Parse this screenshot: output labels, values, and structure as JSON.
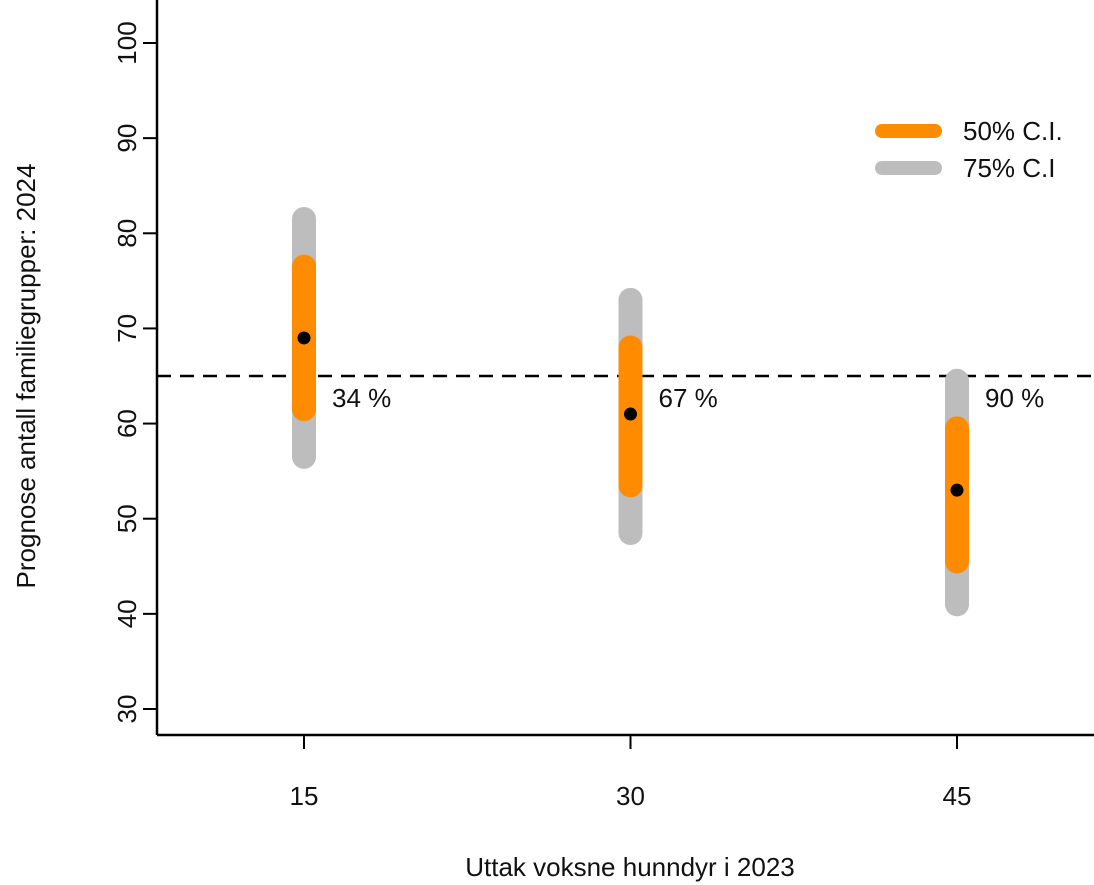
{
  "chart_data": {
    "type": "interval",
    "xlabel": "Uttak voksne hunndyr i 2023",
    "ylabel": "Prognose antall familiegrupper: 2024",
    "ylim": [
      27,
      105
    ],
    "yticks": [
      30,
      40,
      50,
      60,
      70,
      80,
      90,
      100
    ],
    "xticks": [
      15,
      30,
      45
    ],
    "reference_line": {
      "y": 65,
      "style": "dashed"
    },
    "legend_position": "top-right",
    "series": [
      {
        "name": "50% C.I.",
        "color": "#ff8c00"
      },
      {
        "name": "75% C.I",
        "color": "#bdbdbd"
      }
    ],
    "points": [
      {
        "x": 15,
        "median": 69,
        "ci50": [
          61.5,
          76.5
        ],
        "ci75": [
          56.5,
          81.5
        ],
        "label": "34 %"
      },
      {
        "x": 30,
        "median": 61,
        "ci50": [
          53.5,
          68
        ],
        "ci75": [
          48.5,
          73
        ],
        "label": "67 %"
      },
      {
        "x": 45,
        "median": 53,
        "ci50": [
          45.5,
          59.5
        ],
        "ci75": [
          41,
          64.5
        ],
        "label": "90 %"
      }
    ]
  }
}
